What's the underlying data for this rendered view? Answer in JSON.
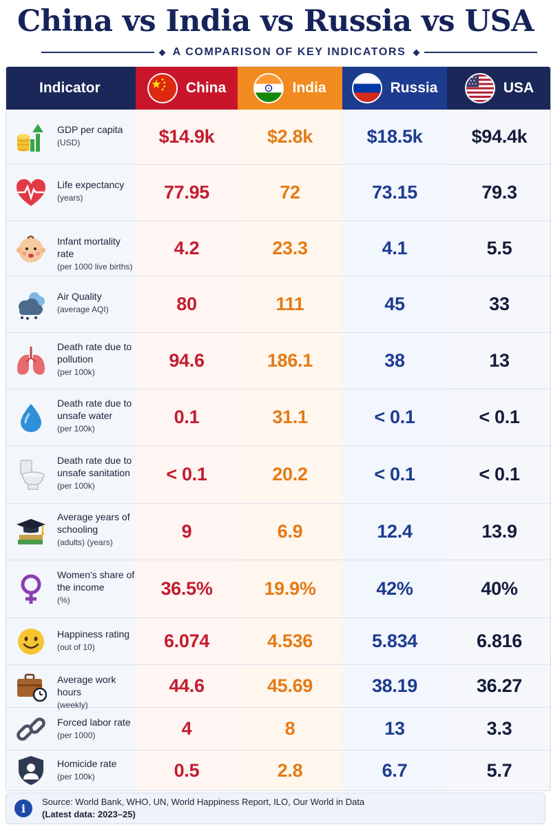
{
  "title": "China vs India vs Russia vs USA",
  "subtitle": "A COMPARISON OF KEY INDICATORS",
  "header": {
    "indicator": "Indicator",
    "countries": [
      "China",
      "India",
      "Russia",
      "USA"
    ]
  },
  "rows": [
    {
      "icon": "coins-chart-icon",
      "label": "GDP per capita",
      "unit": "(USD)",
      "values": [
        "$14.9k",
        "$2.8k",
        "$18.5k",
        "$94.4k"
      ]
    },
    {
      "icon": "heart-pulse-icon",
      "label": "Life expectancy",
      "unit": "(years)",
      "values": [
        "77.95",
        "72",
        "73.15",
        "79.3"
      ]
    },
    {
      "icon": "baby-icon",
      "label": "Infant mortality rate",
      "unit": "(per 1000 live births)",
      "values": [
        "4.2",
        "23.3",
        "4.1",
        "5.5"
      ]
    },
    {
      "icon": "cloud-icon",
      "label": "Air Quality",
      "unit": "(average AQI)",
      "values": [
        "80",
        "111",
        "45",
        "33"
      ]
    },
    {
      "icon": "lungs-icon",
      "label": "Death rate due to pollution",
      "unit": "(per 100k)",
      "values": [
        "94.6",
        "186.1",
        "38",
        "13"
      ]
    },
    {
      "icon": "water-drop-icon",
      "label": "Death rate due to unsafe water",
      "unit": "(per 100k)",
      "values": [
        "0.1",
        "31.1",
        "< 0.1",
        "< 0.1"
      ]
    },
    {
      "icon": "toilet-icon",
      "label": "Death rate due to unsafe sanitation",
      "unit": "(per 100k)",
      "values": [
        "< 0.1",
        "20.2",
        "< 0.1",
        "< 0.1"
      ]
    },
    {
      "icon": "graduation-cap-icon",
      "label": "Average years of schooling",
      "unit": "(adults) (years)",
      "values": [
        "9",
        "6.9",
        "12.4",
        "13.9"
      ]
    },
    {
      "icon": "female-symbol-icon",
      "label": "Women's share of the income",
      "unit": "(%)",
      "values": [
        "36.5%",
        "19.9%",
        "42%",
        "40%"
      ]
    },
    {
      "icon": "smiley-icon",
      "label": "Happiness rating",
      "unit": "(out of 10)",
      "values": [
        "6.074",
        "4.536",
        "5.834",
        "6.816"
      ]
    },
    {
      "icon": "briefcase-clock-icon",
      "label": "Average work hours",
      "unit": "(weekly)",
      "values": [
        "44.6",
        "45.69",
        "38.19",
        "36.27"
      ]
    },
    {
      "icon": "chain-icon",
      "label": "Forced labor rate",
      "unit": "(per 1000)",
      "values": [
        "4",
        "8",
        "13",
        "3.3"
      ]
    },
    {
      "icon": "shield-person-icon",
      "label": "Homicide rate",
      "unit": "(per 100k)",
      "values": [
        "0.5",
        "2.8",
        "6.7",
        "5.7"
      ]
    }
  ],
  "footer": {
    "source": "Source: World Bank, WHO, UN, World Happiness Report, ILO, Our World in Data",
    "latest": "(Latest data: 2023–25)"
  }
}
